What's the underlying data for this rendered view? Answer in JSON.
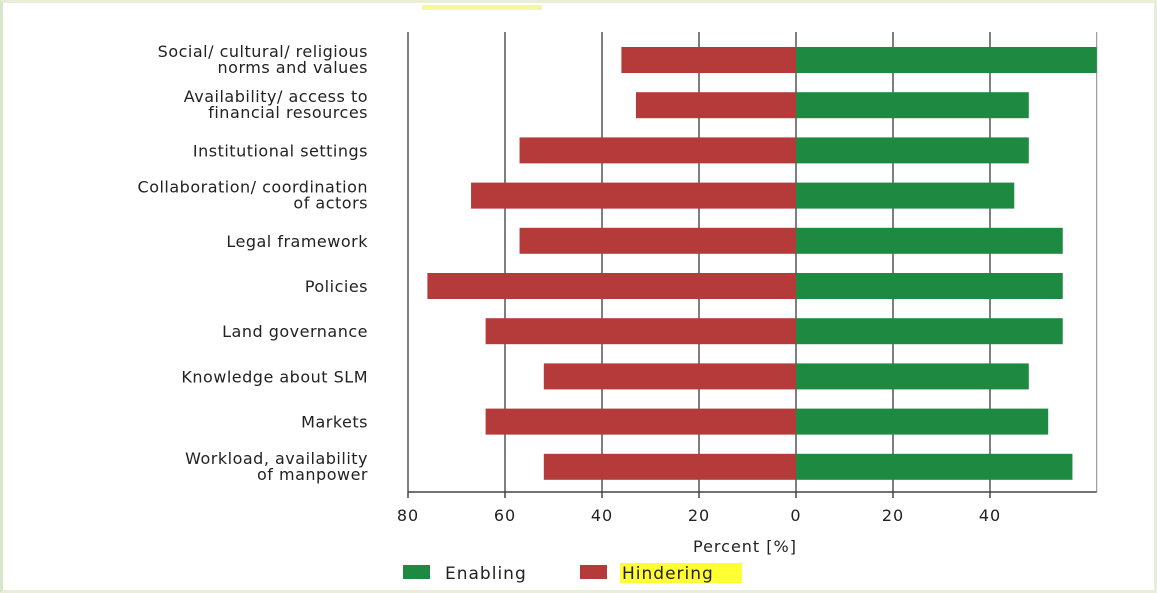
{
  "chart_data": {
    "type": "bar",
    "orientation": "horizontal-diverging",
    "categories": [
      [
        "Social/ cultural/ religious",
        "norms and values"
      ],
      [
        "Availability/ access to",
        "financial resources"
      ],
      [
        "Institutional settings"
      ],
      [
        "Collaboration/ coordination",
        "of actors"
      ],
      [
        "Legal framework"
      ],
      [
        "Policies"
      ],
      [
        "Land governance"
      ],
      [
        "Knowledge about SLM"
      ],
      [
        "Markets"
      ],
      [
        "Workload, availability",
        "of manpower"
      ]
    ],
    "series": [
      {
        "name": "Enabling",
        "color": "#1e8a41",
        "values": [
          62,
          48,
          48,
          45,
          55,
          55,
          55,
          48,
          52,
          57
        ]
      },
      {
        "name": "Hindering",
        "color": "#b53a3a",
        "values": [
          36,
          33,
          57,
          67,
          57,
          76,
          64,
          52,
          64,
          52
        ]
      }
    ],
    "xlabel": "Percent [%]",
    "x_tick_labels": [
      "80",
      "60",
      "40",
      "20",
      "0",
      "20",
      "40"
    ],
    "xlim": [
      -80,
      62
    ],
    "grid": true,
    "legend_position": "bottom",
    "legend_highlight_color": "#ffff33"
  }
}
